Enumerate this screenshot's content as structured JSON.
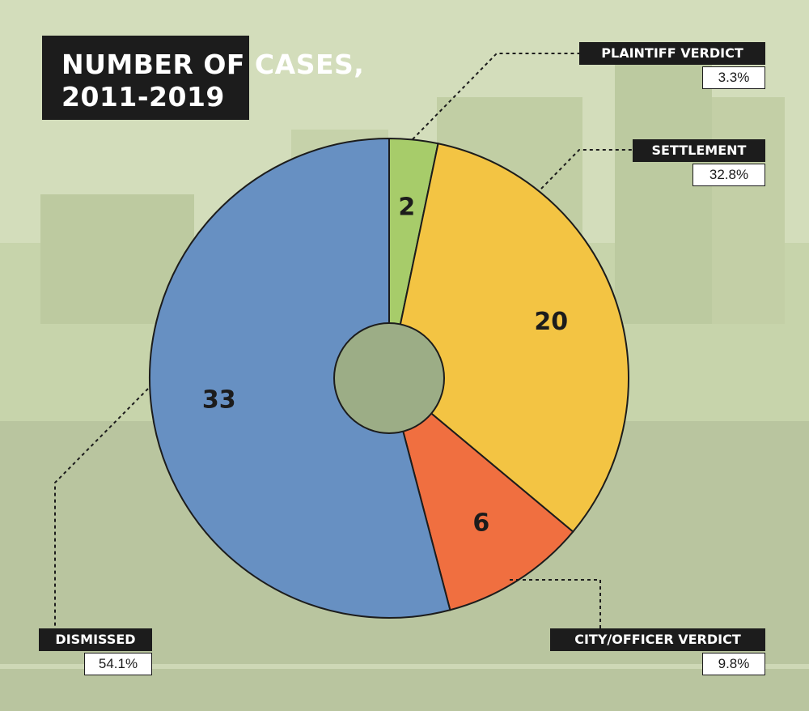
{
  "title": {
    "line1": "NUMBER OF CASES,",
    "line2": "2011-2019"
  },
  "chart_data": {
    "type": "pie",
    "title": "NUMBER OF CASES, 2011-2019",
    "slices": [
      {
        "label": "PLAINTIFF VERDICT",
        "value": 2,
        "percent": "3.3%",
        "color": "#a7cc6a"
      },
      {
        "label": "SETTLEMENT",
        "value": 20,
        "percent": "32.8%",
        "color": "#f3c443"
      },
      {
        "label": "CITY/OFFICER VERDICT",
        "value": 6,
        "percent": "9.8%",
        "color": "#f06f40"
      },
      {
        "label": "DISMISSED",
        "value": 33,
        "percent": "54.1%",
        "color": "#6790c2"
      }
    ]
  }
}
